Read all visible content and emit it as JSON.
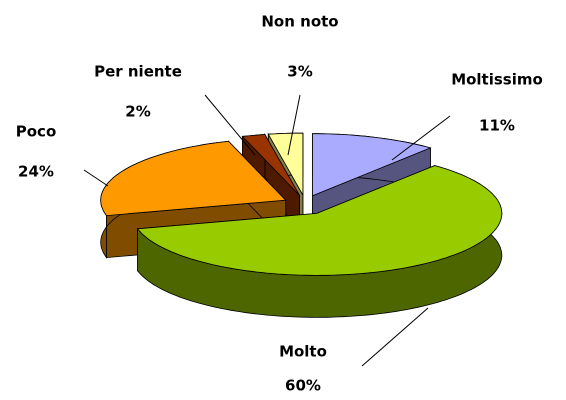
{
  "chart_data": {
    "type": "pie",
    "categories": [
      "Moltissimo",
      "Molto",
      "Poco",
      "Per niente",
      "Non noto"
    ],
    "values": [
      11,
      60,
      24,
      2,
      3
    ],
    "value_labels": [
      "11%",
      "60%",
      "24%",
      "2%",
      "3%"
    ],
    "colors": [
      "#aaaaff",
      "#99cc00",
      "#ff9900",
      "#993300",
      "#ffff99"
    ]
  }
}
